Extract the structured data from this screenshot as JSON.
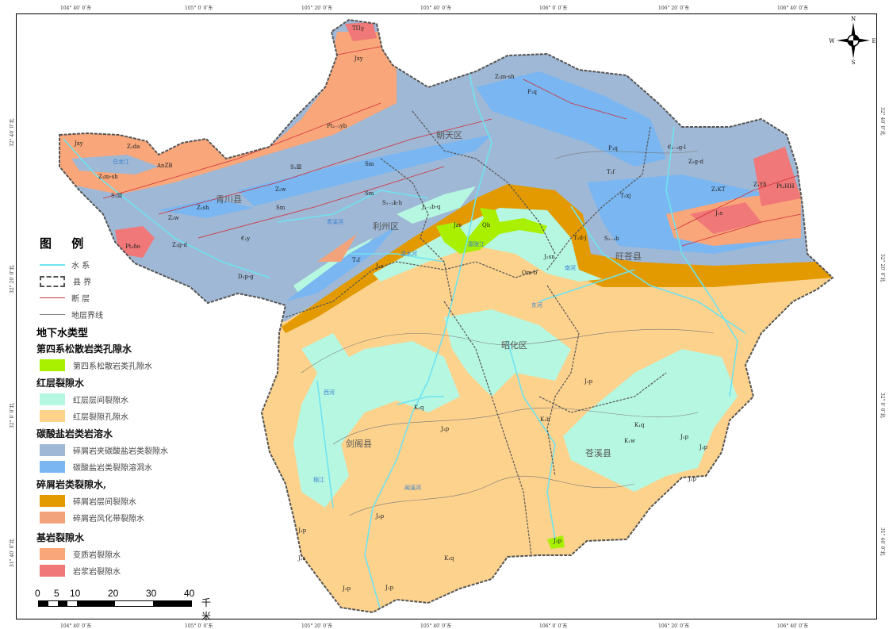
{
  "graticule": {
    "longitudes": [
      "104° 40′ 0″东",
      "105° 0′ 0″东",
      "105° 20′ 0″东",
      "105° 40′ 0″东",
      "106° 0′ 0″东",
      "106° 20′ 0″东",
      "106° 40′ 0″东"
    ],
    "latitudes": [
      "32° 40′ 0″北",
      "32° 20′ 0″北",
      "32° 0′ 0″北",
      "31° 40′ 0″北"
    ]
  },
  "compass": {
    "n": "N",
    "s": "S",
    "e": "E",
    "w": "W"
  },
  "counties": [
    "青川县",
    "朝天区",
    "利州区",
    "旺苍县",
    "昭化区",
    "剑阁县",
    "苍溪县"
  ],
  "rivers": [
    "嘉陵江",
    "青溪河",
    "清水河",
    "南河",
    "东河",
    "白龙江",
    "西河",
    "闻溪河",
    "插江"
  ],
  "geo_labels": [
    "TΠγ",
    "Jxy",
    "Pt₂₋₃yb",
    "Jxy",
    "Z₁da",
    "AnZB",
    "Z₂m-sh",
    "S₁Ⅲ",
    "Pt₂δo",
    "Z₂g-d",
    "Z₂sh",
    "Z₂w",
    "S₁Ⅲ",
    "Sm",
    "Sm",
    "Sm",
    "Z₂w",
    "€₁y",
    "D₁p-g",
    "S₁₋₂k-h",
    "J₁₋₂b-q",
    "Jᴢs",
    "Qh",
    "T₃f",
    "J₂s",
    "Om-b",
    "Z₂m-sh",
    "P₁q",
    "P₁q",
    "T₃f",
    "T₁xj",
    "T₁d-j",
    "S₁₋₃b",
    "€₁₋₃g-l",
    "Z₂g-d",
    "Z₁KT",
    "Z₁Yδ",
    "Pt₂HH",
    "J₂s",
    "J₂sn",
    "J₃p",
    "K₁q",
    "J₃p",
    "J₃p",
    "K₁b",
    "K₁q",
    "K₁w",
    "J₃p",
    "J₃p",
    "J₃p",
    "J₃p",
    "J₃p",
    "J₂s",
    "J₃p",
    "K₁q",
    "J₃p"
  ],
  "legend": {
    "title": "图  例",
    "lines": [
      {
        "label": "水  系",
        "color": "#6fe3ef",
        "kind": "river"
      },
      {
        "label": "县  界",
        "color": "#555555",
        "kind": "county-boundary"
      },
      {
        "label": "断  层",
        "color": "#d0303a",
        "kind": "fault"
      },
      {
        "label": "地层界线",
        "color": "#888888",
        "kind": "stratum-boundary"
      }
    ],
    "heading": "地下水类型",
    "groups": [
      {
        "title": "第四系松散岩类孔隙水",
        "items": [
          {
            "label": "第四系松散岩类孔隙水",
            "color": "#a8f000"
          }
        ]
      },
      {
        "title": "红层裂隙水",
        "items": [
          {
            "label": "红层层间裂隙水",
            "color": "#b6f7e2"
          },
          {
            "label": "红层裂隙孔隙水",
            "color": "#fdd28c"
          }
        ]
      },
      {
        "title": "碳酸盐岩类岩溶水",
        "items": [
          {
            "label": "碎屑岩夹碳酸盐岩类裂隙水",
            "color": "#9fb8d6"
          },
          {
            "label": "碳酸盐岩类裂隙溶洞水",
            "color": "#79b6f2"
          }
        ]
      },
      {
        "title": "碎屑岩类裂隙水,",
        "items": [
          {
            "label": "碎屑岩层间裂隙水",
            "color": "#e39a00"
          },
          {
            "label": "碎屑岩风化带裂隙水",
            "color": "#f3a37c"
          }
        ]
      },
      {
        "title": "基岩裂隙水",
        "items": [
          {
            "label": "变质岩裂隙水",
            "color": "#f9a67a"
          },
          {
            "label": "岩浆岩裂隙水",
            "color": "#f07878"
          }
        ]
      }
    ]
  },
  "scale": {
    "ticks": [
      "0",
      "5",
      "10",
      "20",
      "30",
      "40"
    ],
    "unit": "千米"
  }
}
